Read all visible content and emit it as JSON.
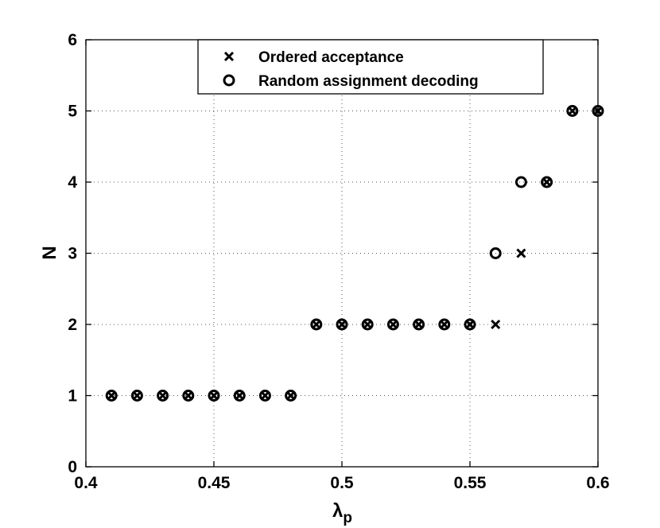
{
  "chart_data": {
    "type": "scatter",
    "xlabel": "λ",
    "xlabel_sub": "p",
    "ylabel": "N",
    "xlim": [
      0.4,
      0.6
    ],
    "ylim": [
      0,
      6
    ],
    "xticks": [
      0.4,
      0.45,
      0.5,
      0.55,
      0.6
    ],
    "xtick_labels": [
      "0.4",
      "0.45",
      "0.5",
      "0.55",
      "0.6"
    ],
    "yticks": [
      0,
      1,
      2,
      3,
      4,
      5,
      6
    ],
    "ytick_labels": [
      "0",
      "1",
      "2",
      "3",
      "4",
      "5",
      "6"
    ],
    "grid": true,
    "legend_position": "top-center",
    "series": [
      {
        "name": "Ordered acceptance",
        "marker": "x",
        "color": "#000000",
        "x": [
          0.41,
          0.42,
          0.43,
          0.44,
          0.45,
          0.46,
          0.47,
          0.48,
          0.49,
          0.5,
          0.51,
          0.52,
          0.53,
          0.54,
          0.55,
          0.56,
          0.57,
          0.58,
          0.59,
          0.6
        ],
        "y": [
          1,
          1,
          1,
          1,
          1,
          1,
          1,
          1,
          2,
          2,
          2,
          2,
          2,
          2,
          2,
          2,
          3,
          4,
          5,
          5
        ]
      },
      {
        "name": "Random assignment decoding",
        "marker": "o",
        "color": "#000000",
        "x": [
          0.41,
          0.42,
          0.43,
          0.44,
          0.45,
          0.46,
          0.47,
          0.48,
          0.49,
          0.5,
          0.51,
          0.52,
          0.53,
          0.54,
          0.55,
          0.56,
          0.57,
          0.58,
          0.59,
          0.6
        ],
        "y": [
          1,
          1,
          1,
          1,
          1,
          1,
          1,
          1,
          2,
          2,
          2,
          2,
          2,
          2,
          2,
          3,
          4,
          4,
          5,
          5
        ]
      }
    ]
  }
}
